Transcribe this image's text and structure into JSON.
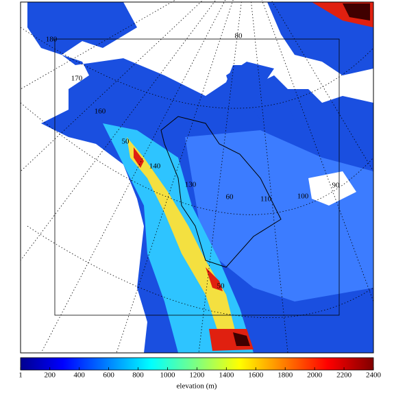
{
  "colorbar": {
    "label": "elevation (m)",
    "lim": [
      1,
      2400
    ],
    "ticks": [
      1,
      200,
      400,
      600,
      800,
      1000,
      1200,
      1400,
      1600,
      1800,
      2000,
      2200,
      2400
    ]
  },
  "map_labels": [
    "180",
    "170",
    "160",
    "50",
    "140",
    "130",
    "60",
    "110",
    "100",
    "90",
    "80",
    "50"
  ]
}
